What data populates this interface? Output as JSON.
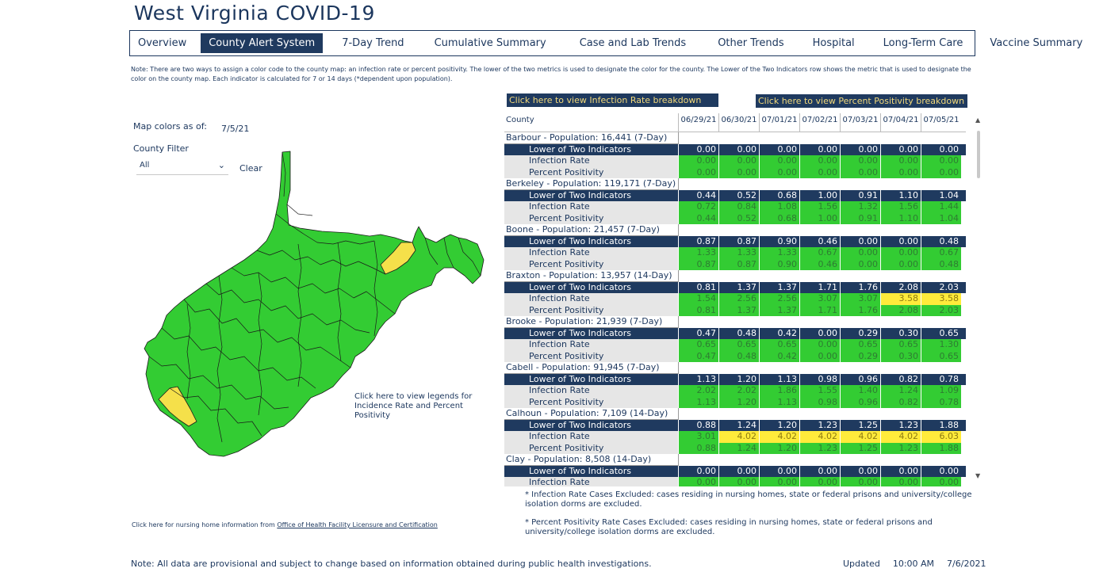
{
  "header": {
    "title": "West Virginia COVID-19"
  },
  "nav": {
    "tabs": [
      {
        "label": "Overview",
        "active": false
      },
      {
        "label": "County Alert System",
        "active": true
      },
      {
        "label": "7-Day Trend",
        "active": false
      },
      {
        "label": "Cumulative Summary",
        "active": false
      },
      {
        "label": "Case and Lab Trends",
        "active": false
      },
      {
        "label": "Other Trends",
        "active": false
      },
      {
        "label": "Hospital",
        "active": false
      },
      {
        "label": "Long-Term Care",
        "active": false
      },
      {
        "label": "Vaccine Summary",
        "active": false
      }
    ]
  },
  "note_top": "Note: There are two ways to assign a color code to the county map: an infection rate or percent positivity. The lower of the two metrics is used to designate the color for the county. The Lower of the Two Indicators row shows the metric that is used to designate the color on the county map. Each indicator is calculated for 7 or 14 days (*dependent upon population).",
  "map_panel": {
    "colors_label": "Map colors as of:",
    "colors_date": "7/5/21",
    "filter_label": "County Filter",
    "filter_value": "All",
    "clear_label": "Clear",
    "legend_link": "Click here to view legends for Incidence Rate and Percent Positivity",
    "map_colors": {
      "green": "#33cc33",
      "yellow": "#f5e04a",
      "border": "#1a1a1a"
    }
  },
  "nursing": {
    "prefix": "Click here for nursing home information from ",
    "link": "Office of Health Facility Licensure and Certification"
  },
  "buttons": {
    "infection_rate": "Click here to view Infection Rate breakdown",
    "percent_positivity": "Click here to view Percent Positivity breakdown"
  },
  "table": {
    "county_header": "County",
    "dates": [
      "06/29/21",
      "06/30/21",
      "07/01/21",
      "07/02/21",
      "07/03/21",
      "07/04/21",
      "07/05/21"
    ],
    "metric_labels": [
      "Lower of Two Indicators",
      "Infection Rate",
      "Percent Positivity"
    ],
    "counties": [
      {
        "name": "Barbour - Population: 16,441 (7-Day)",
        "lower": [
          "0.00",
          "0.00",
          "0.00",
          "0.00",
          "0.00",
          "0.00",
          "0.00"
        ],
        "ir": [
          "0.00",
          "0.00",
          "0.00",
          "0.00",
          "0.00",
          "0.00",
          "0.00"
        ],
        "pp": [
          "0.00",
          "0.00",
          "0.00",
          "0.00",
          "0.00",
          "0.00",
          "0.00"
        ],
        "ir_color": [
          "green",
          "green",
          "green",
          "green",
          "green",
          "green",
          "green"
        ]
      },
      {
        "name": "Berkeley - Population: 119,171 (7-Day)",
        "lower": [
          "0.44",
          "0.52",
          "0.68",
          "1.00",
          "0.91",
          "1.10",
          "1.04"
        ],
        "ir": [
          "0.72",
          "0.84",
          "1.08",
          "1.56",
          "1.32",
          "1.56",
          "1.44"
        ],
        "pp": [
          "0.44",
          "0.52",
          "0.68",
          "1.00",
          "0.91",
          "1.10",
          "1.04"
        ],
        "ir_color": [
          "green",
          "green",
          "green",
          "green",
          "green",
          "green",
          "green"
        ]
      },
      {
        "name": "Boone - Population: 21,457 (7-Day)",
        "lower": [
          "0.87",
          "0.87",
          "0.90",
          "0.46",
          "0.00",
          "0.00",
          "0.48"
        ],
        "ir": [
          "1.33",
          "1.33",
          "1.33",
          "0.67",
          "0.00",
          "0.00",
          "0.67"
        ],
        "pp": [
          "0.87",
          "0.87",
          "0.90",
          "0.46",
          "0.00",
          "0.00",
          "0.48"
        ],
        "ir_color": [
          "green",
          "green",
          "green",
          "green",
          "green",
          "green",
          "green"
        ]
      },
      {
        "name": "Braxton - Population: 13,957 (14-Day)",
        "lower": [
          "0.81",
          "1.37",
          "1.37",
          "1.71",
          "1.76",
          "2.08",
          "2.03"
        ],
        "ir": [
          "1.54",
          "2.56",
          "2.56",
          "3.07",
          "3.07",
          "3.58",
          "3.58"
        ],
        "pp": [
          "0.81",
          "1.37",
          "1.37",
          "1.71",
          "1.76",
          "2.08",
          "2.03"
        ],
        "ir_color": [
          "green",
          "green",
          "green",
          "green",
          "green",
          "yellow",
          "yellow"
        ]
      },
      {
        "name": "Brooke - Population: 21,939 (7-Day)",
        "lower": [
          "0.47",
          "0.48",
          "0.42",
          "0.00",
          "0.29",
          "0.30",
          "0.65"
        ],
        "ir": [
          "0.65",
          "0.65",
          "0.65",
          "0.00",
          "0.65",
          "0.65",
          "1.30"
        ],
        "pp": [
          "0.47",
          "0.48",
          "0.42",
          "0.00",
          "0.29",
          "0.30",
          "0.65"
        ],
        "ir_color": [
          "green",
          "green",
          "green",
          "green",
          "green",
          "green",
          "green"
        ]
      },
      {
        "name": "Cabell - Population: 91,945 (7-Day)",
        "lower": [
          "1.13",
          "1.20",
          "1.13",
          "0.98",
          "0.96",
          "0.82",
          "0.78"
        ],
        "ir": [
          "2.02",
          "2.02",
          "1.86",
          "1.55",
          "1.40",
          "1.24",
          "1.09"
        ],
        "pp": [
          "1.13",
          "1.20",
          "1.13",
          "0.98",
          "0.96",
          "0.82",
          "0.78"
        ],
        "ir_color": [
          "green",
          "green",
          "green",
          "green",
          "green",
          "green",
          "green"
        ]
      },
      {
        "name": "Calhoun - Population: 7,109 (14-Day)",
        "lower": [
          "0.88",
          "1.24",
          "1.20",
          "1.23",
          "1.25",
          "1.23",
          "1.88"
        ],
        "ir": [
          "3.01",
          "4.02",
          "4.02",
          "4.02",
          "4.02",
          "4.02",
          "6.03"
        ],
        "pp": [
          "0.88",
          "1.24",
          "1.20",
          "1.23",
          "1.25",
          "1.23",
          "1.88"
        ],
        "ir_color": [
          "green",
          "yellow",
          "yellow",
          "yellow",
          "yellow",
          "yellow",
          "yellow"
        ]
      },
      {
        "name": "Clay - Population: 8,508 (14-Day)",
        "lower": [
          "0.00",
          "0.00",
          "0.00",
          "0.00",
          "0.00",
          "0.00",
          "0.00"
        ],
        "ir": [
          "0.00",
          "0.00",
          "0.00",
          "0.00",
          "0.00",
          "0.00",
          "0.00"
        ],
        "pp": [
          "0.00",
          "0.00",
          "0.00",
          "0.00",
          "0.00",
          "0.00",
          "0.00"
        ],
        "ir_color": [
          "green",
          "green",
          "green",
          "green",
          "green",
          "green",
          "green"
        ]
      }
    ]
  },
  "footnotes": {
    "ir": "* Infection Rate Cases Excluded: cases residing in nursing homes, state or federal prisons and university/college isolation dorms are excluded.",
    "pp": "* Percent Positivity Rate Cases Excluded: cases residing in nursing homes, state or federal prisons and university/college isolation dorms are excluded."
  },
  "footer": {
    "note": "Note: All data are provisional and subject to change based on information obtained during public health investigations.",
    "updated_label": "Updated",
    "updated_time": "10:00 AM",
    "updated_date": "7/6/2021"
  }
}
